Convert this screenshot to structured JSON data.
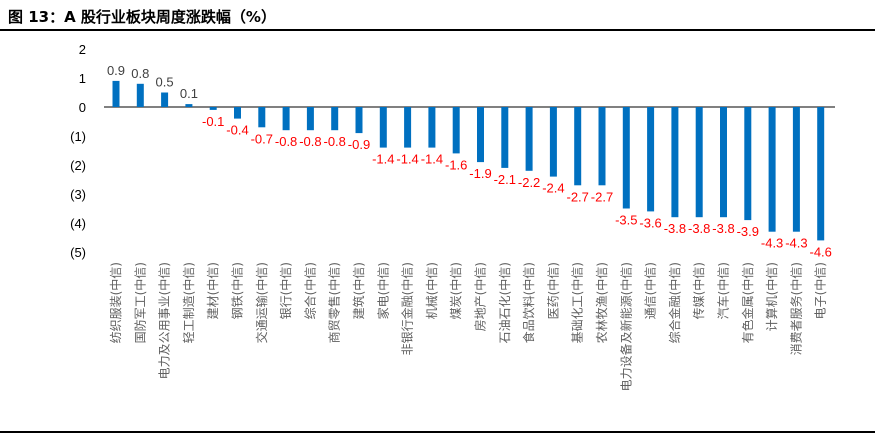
{
  "title": "图 13：A 股行业板块周度涨跌幅（%）",
  "chart_data": {
    "type": "bar",
    "title": "图 13：A 股行业板块周度涨跌幅（%）",
    "xlabel": "",
    "ylabel": "",
    "ylim": [
      -5,
      2
    ],
    "yticks": [
      2,
      1,
      0,
      -1,
      -2,
      -3,
      -4,
      -5
    ],
    "ytick_labels": [
      "2",
      "1",
      "0",
      "(1)",
      "(2)",
      "(3)",
      "(4)",
      "(5)"
    ],
    "grid": false,
    "colors": {
      "bar": "#0070c0",
      "positive_label": "#404040",
      "negative_label": "#ff0000"
    },
    "categories": [
      "纺织服装(中信)",
      "国防军工(中信)",
      "电力及公用事业(中信)",
      "轻工制造(中信)",
      "建材(中信)",
      "钢铁(中信)",
      "交通运输(中信)",
      "银行(中信)",
      "综合(中信)",
      "商贸零售(中信)",
      "建筑(中信)",
      "家电(中信)",
      "非银行金融(中信)",
      "机械(中信)",
      "煤炭(中信)",
      "房地产(中信)",
      "石油石化(中信)",
      "食品饮料(中信)",
      "医药(中信)",
      "基础化工(中信)",
      "农林牧渔(中信)",
      "电力设备及新能源(中信)",
      "通信(中信)",
      "综合金融(中信)",
      "传媒(中信)",
      "汽车(中信)",
      "有色金属(中信)",
      "计算机(中信)",
      "消费者服务(中信)",
      "电子(中信)"
    ],
    "values": [
      0.9,
      0.8,
      0.5,
      0.1,
      -0.1,
      -0.4,
      -0.7,
      -0.8,
      -0.8,
      -0.8,
      -0.9,
      -1.4,
      -1.4,
      -1.4,
      -1.6,
      -1.9,
      -2.1,
      -2.2,
      -2.4,
      -2.7,
      -2.7,
      -3.5,
      -3.6,
      -3.8,
      -3.8,
      -3.8,
      -3.9,
      -4.3,
      -4.3,
      -4.6
    ]
  }
}
